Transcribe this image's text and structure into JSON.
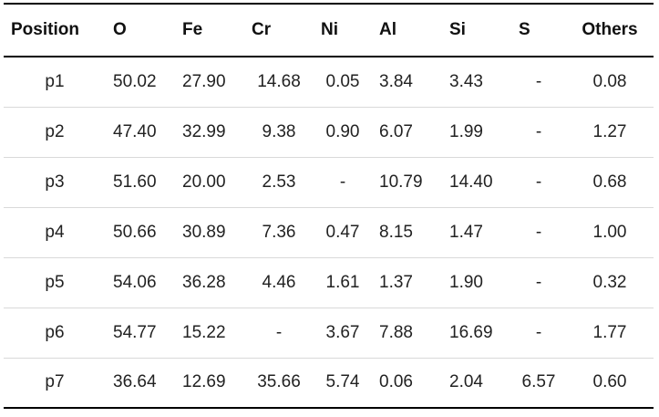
{
  "table": {
    "headers": [
      "Position",
      "O",
      "Fe",
      "Cr",
      "Ni",
      "Al",
      "Si",
      "S",
      "Others"
    ],
    "rows": [
      [
        "p1",
        "50.02",
        "27.90",
        "14.68",
        "0.05",
        "3.84",
        "3.43",
        "-",
        "0.08"
      ],
      [
        "p2",
        "47.40",
        "32.99",
        "9.38",
        "0.90",
        "6.07",
        "1.99",
        "-",
        "1.27"
      ],
      [
        "p3",
        "51.60",
        "20.00",
        "2.53",
        "-",
        "10.79",
        "14.40",
        "-",
        "0.68"
      ],
      [
        "p4",
        "50.66",
        "30.89",
        "7.36",
        "0.47",
        "8.15",
        "1.47",
        "-",
        "1.00"
      ],
      [
        "p5",
        "54.06",
        "36.28",
        "4.46",
        "1.61",
        "1.37",
        "1.90",
        "-",
        "0.32"
      ],
      [
        "p6",
        "54.77",
        "15.22",
        "-",
        "3.67",
        "7.88",
        "16.69",
        "-",
        "1.77"
      ],
      [
        "p7",
        "36.64",
        "12.69",
        "35.66",
        "5.74",
        "0.06",
        "2.04",
        "6.57",
        "0.60"
      ]
    ]
  }
}
